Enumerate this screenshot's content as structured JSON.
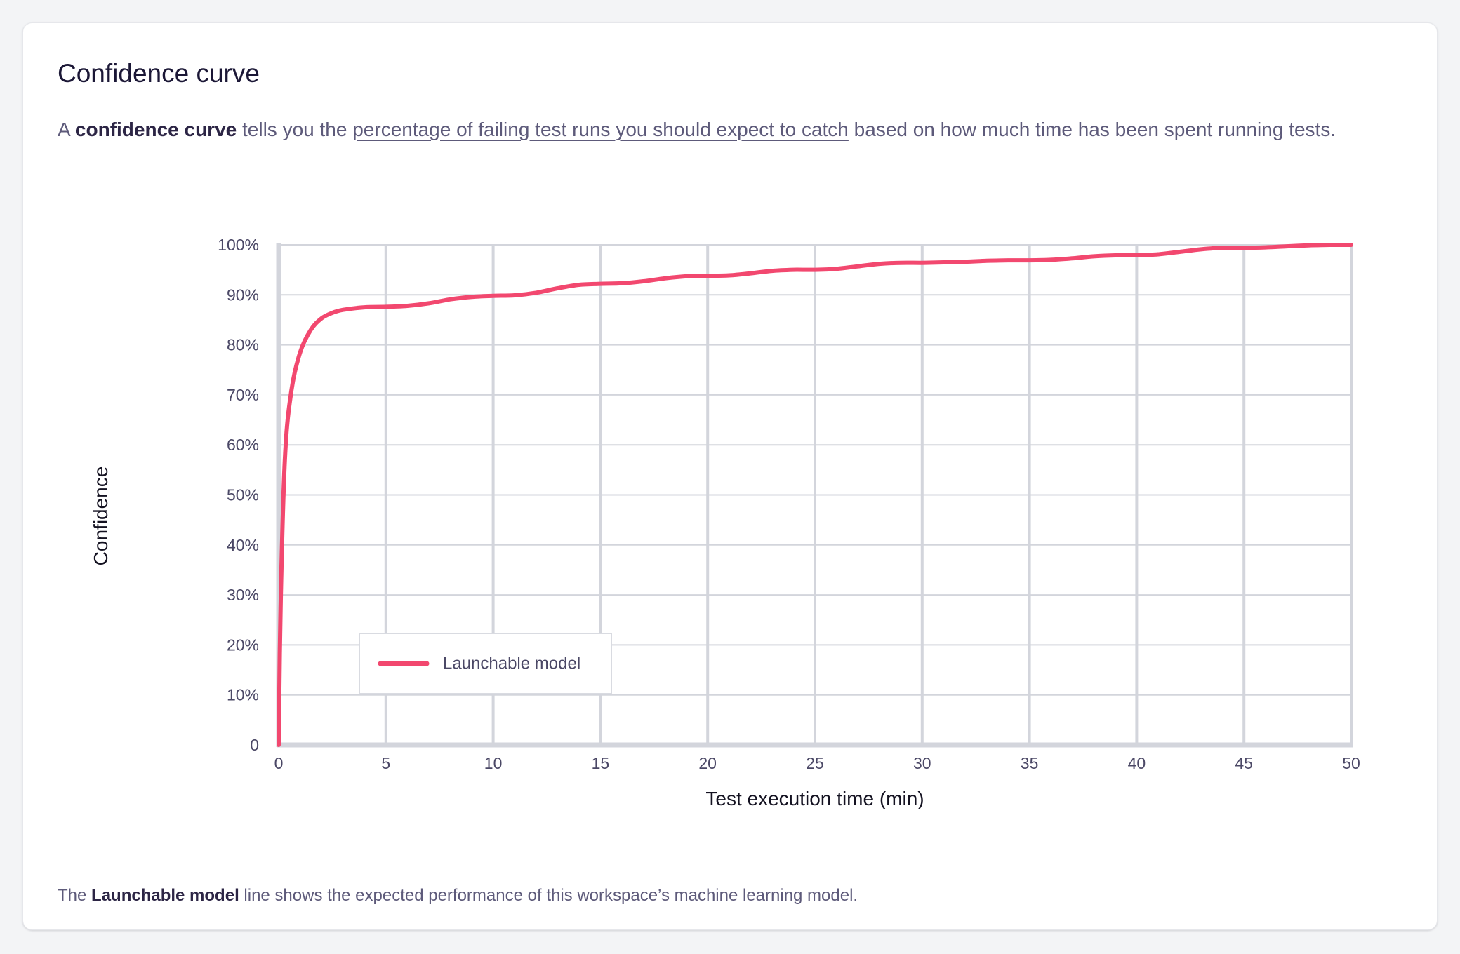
{
  "card": {
    "title": "Confidence curve",
    "desc_prefix": "A ",
    "desc_bold": "confidence curve",
    "desc_mid": " tells you the ",
    "desc_link": "percentage of failing test runs you should expect to catch",
    "desc_suffix": " based on how much time has been spent running tests.",
    "footer_prefix": "The ",
    "footer_bold": "Launchable model",
    "footer_suffix": " line shows the expected performance of this workspace’s machine learning model."
  },
  "colors": {
    "series": "#f2486f",
    "grid": "#d3d5dc",
    "axis": "#d3d5dc"
  },
  "chart_data": {
    "type": "line",
    "title": "",
    "xlabel": "Test execution time (min)",
    "ylabel": "Confidence",
    "xlim": [
      0,
      50
    ],
    "ylim": [
      0,
      100
    ],
    "xticks": [
      0,
      5,
      10,
      15,
      20,
      25,
      30,
      35,
      40,
      45,
      50
    ],
    "yticks": [
      0,
      10,
      20,
      30,
      40,
      50,
      60,
      70,
      80,
      90,
      100
    ],
    "xtick_labels": [
      "0",
      "5",
      "10",
      "15",
      "20",
      "25",
      "30",
      "35",
      "40",
      "45",
      "50"
    ],
    "ytick_labels": [
      "0",
      "10%",
      "20%",
      "30%",
      "40%",
      "50%",
      "60%",
      "70%",
      "80%",
      "90%",
      "100%"
    ],
    "grid": true,
    "legend_position": "bottom-left",
    "series": [
      {
        "name": "Launchable model",
        "x": [
          0,
          0.1,
          0.3,
          0.6,
          1,
          1.5,
          2,
          2.5,
          3,
          4,
          5,
          6,
          7,
          8,
          9,
          10,
          11,
          12,
          13,
          14,
          15,
          16,
          17,
          18,
          19,
          20,
          21,
          22,
          23,
          24,
          25,
          26,
          27,
          28,
          29,
          30,
          31,
          32,
          33,
          34,
          35,
          36,
          37,
          38,
          39,
          40,
          41,
          42,
          43,
          44,
          45,
          46,
          47,
          48,
          49,
          50
        ],
        "y": [
          0,
          30,
          58,
          71,
          78.5,
          83,
          85.3,
          86.4,
          87,
          87.5,
          87.6,
          87.8,
          88.3,
          89.1,
          89.6,
          89.8,
          89.9,
          90.4,
          91.3,
          92,
          92.2,
          92.3,
          92.7,
          93.3,
          93.7,
          93.8,
          93.9,
          94.3,
          94.8,
          95,
          95,
          95.2,
          95.7,
          96.2,
          96.4,
          96.4,
          96.5,
          96.6,
          96.8,
          96.9,
          96.9,
          97,
          97.3,
          97.7,
          97.9,
          97.9,
          98.1,
          98.6,
          99.1,
          99.4,
          99.4,
          99.5,
          99.7,
          99.9,
          100,
          100
        ]
      }
    ]
  }
}
